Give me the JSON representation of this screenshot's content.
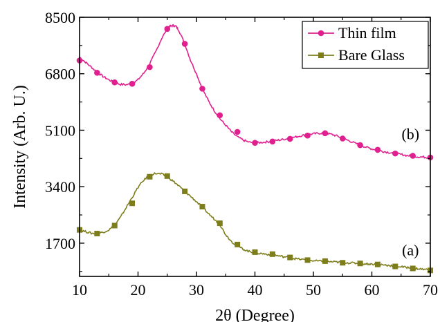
{
  "chart_data": {
    "type": "line",
    "xlabel": "2θ (Degree)",
    "ylabel": "Intensity (Arb. U.)",
    "xlim": [
      10,
      70
    ],
    "ylim": [
      700,
      8500
    ],
    "x_ticks": [
      "10",
      "20",
      "30",
      "40",
      "50",
      "60",
      "70"
    ],
    "y_ticks": [
      "1700",
      "3400",
      "5100",
      "6800",
      "8500"
    ],
    "grid": false,
    "legend_position": "top-right",
    "series": [
      {
        "name": "Thin film",
        "color": "#e0208f",
        "marker": "circle",
        "x": [
          10,
          11,
          12,
          13,
          14,
          15,
          16,
          17,
          18,
          19,
          20,
          21,
          22,
          23,
          24,
          25,
          25.5,
          26,
          26.5,
          27,
          28,
          29,
          30,
          31,
          32,
          33,
          34,
          35,
          36,
          37,
          38,
          39,
          40,
          41,
          42,
          43,
          44,
          45,
          46,
          47,
          48,
          49,
          50,
          51,
          52,
          53,
          54,
          55,
          56,
          57,
          58,
          59,
          60,
          61,
          62,
          63,
          64,
          65,
          66,
          67,
          68,
          69,
          70
        ],
        "y": [
          7300,
          7150,
          7000,
          6850,
          6720,
          6620,
          6530,
          6480,
          6470,
          6500,
          6620,
          6820,
          7100,
          7450,
          7850,
          8150,
          8230,
          8250,
          8230,
          8100,
          7700,
          7200,
          6800,
          6350,
          6000,
          5700,
          5450,
          5250,
          5050,
          4900,
          4800,
          4740,
          4720,
          4730,
          4750,
          4770,
          4800,
          4830,
          4860,
          4900,
          4940,
          4970,
          4990,
          5010,
          5010,
          4980,
          4930,
          4860,
          4790,
          4720,
          4650,
          4590,
          4540,
          4500,
          4460,
          4430,
          4400,
          4370,
          4340,
          4320,
          4300,
          4290,
          4280
        ],
        "markers_x": [
          10,
          13,
          16,
          19,
          22,
          25,
          28,
          31,
          34,
          37,
          40,
          43,
          46,
          49,
          52,
          55,
          58,
          61,
          64,
          67,
          70
        ],
        "markers_y": [
          7200,
          6830,
          6540,
          6500,
          7000,
          8150,
          7700,
          6350,
          5550,
          5050,
          4720,
          4760,
          4840,
          4940,
          5010,
          4850,
          4650,
          4510,
          4400,
          4330,
          4280
        ]
      },
      {
        "name": "Bare Glass",
        "color": "#7d7d1b",
        "marker": "square",
        "x": [
          10,
          11,
          12,
          13,
          14,
          15,
          16,
          17,
          18,
          19,
          20,
          21,
          22,
          23,
          24,
          25,
          26,
          27,
          28,
          29,
          30,
          31,
          32,
          33,
          34,
          35,
          36,
          37,
          38,
          39,
          40,
          41,
          42,
          43,
          44,
          45,
          46,
          47,
          48,
          49,
          50,
          51,
          52,
          53,
          54,
          55,
          56,
          57,
          58,
          59,
          60,
          61,
          62,
          63,
          64,
          65,
          66,
          67,
          68,
          69,
          70
        ],
        "y": [
          2100,
          2050,
          2000,
          1990,
          2030,
          2100,
          2230,
          2480,
          2780,
          3080,
          3380,
          3600,
          3750,
          3800,
          3780,
          3700,
          3570,
          3420,
          3260,
          3110,
          2950,
          2780,
          2600,
          2430,
          2260,
          1960,
          1750,
          1620,
          1520,
          1450,
          1410,
          1390,
          1370,
          1350,
          1320,
          1290,
          1260,
          1230,
          1210,
          1190,
          1170,
          1160,
          1150,
          1140,
          1130,
          1120,
          1110,
          1100,
          1090,
          1080,
          1070,
          1060,
          1050,
          1030,
          1010,
          990,
          970,
          950,
          930,
          910,
          900
        ],
        "markers_x": [
          10,
          13,
          16,
          19,
          22,
          25,
          28,
          31,
          34,
          37,
          40,
          43,
          46,
          49,
          52,
          55,
          58,
          61,
          64,
          67,
          70
        ],
        "markers_y": [
          2100,
          1990,
          2230,
          2900,
          3700,
          3720,
          3260,
          2800,
          2300,
          1660,
          1430,
          1370,
          1270,
          1190,
          1160,
          1110,
          1090,
          1060,
          1000,
          940,
          880
        ]
      }
    ],
    "annotations": [
      {
        "text": "(b)",
        "x": 64,
        "y": 5000
      },
      {
        "text": "(a)",
        "x": 64,
        "y": 1500
      }
    ]
  }
}
